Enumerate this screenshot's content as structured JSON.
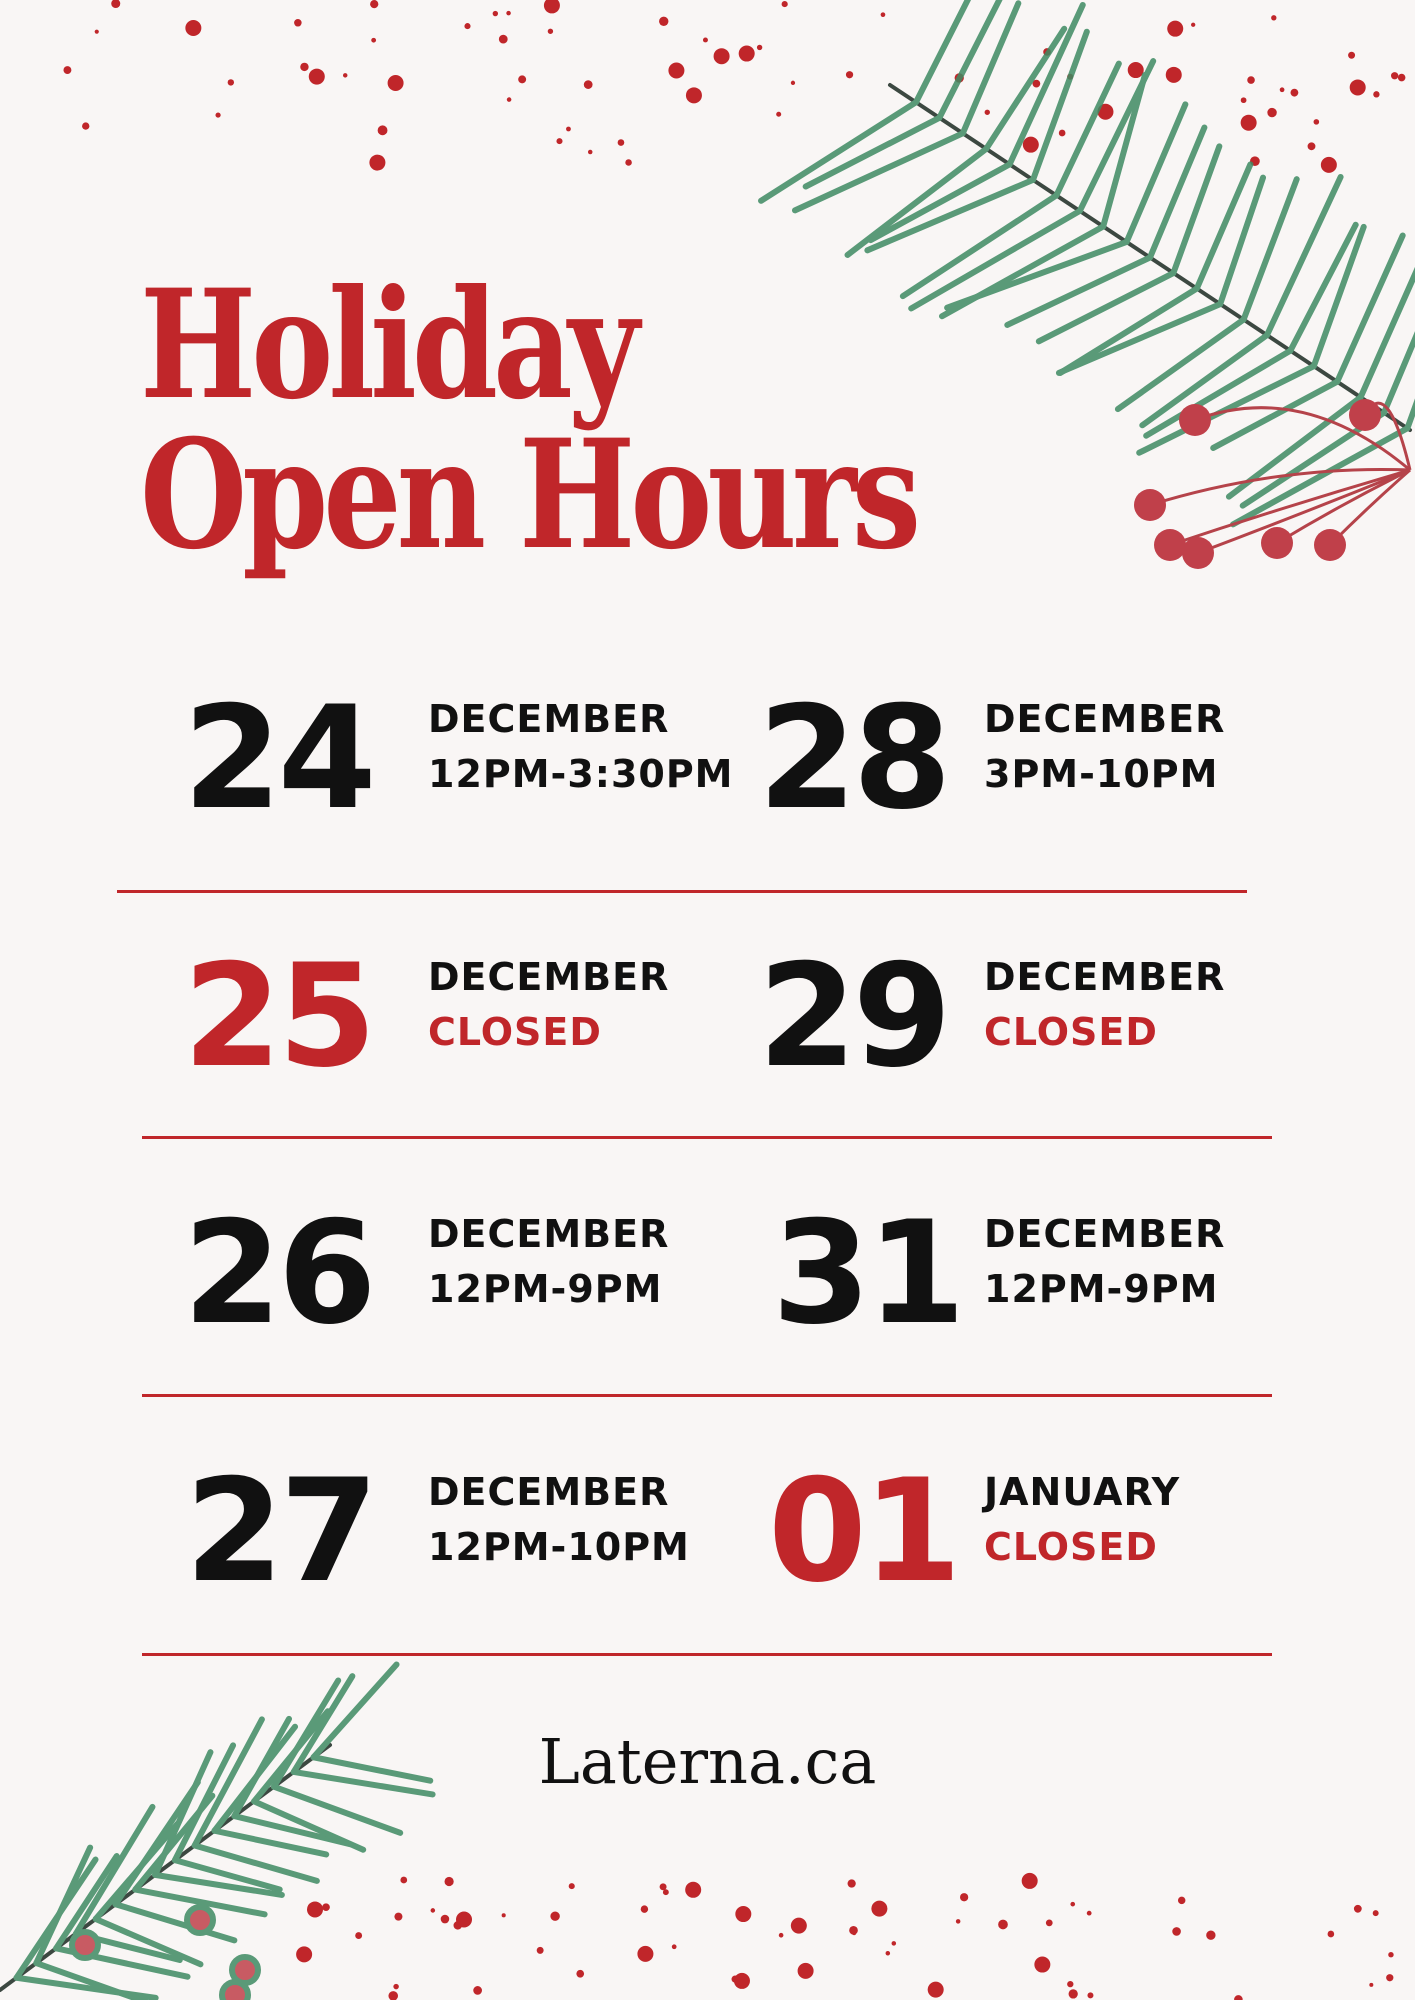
{
  "title": {
    "line1": "Holiday",
    "line2": "Open Hours"
  },
  "colors": {
    "accent": "#c0262a",
    "text": "#111111",
    "background": "#f9f6f5",
    "pine": "#3f8a63"
  },
  "schedule": [
    {
      "day": "24",
      "month": "DECEMBER",
      "hours": "12PM-3:30PM",
      "closed": false
    },
    {
      "day": "28",
      "month": "DECEMBER",
      "hours": "3PM-10PM",
      "closed": false
    },
    {
      "day": "25",
      "month": "DECEMBER",
      "hours": "CLOSED",
      "closed": true
    },
    {
      "day": "29",
      "month": "DECEMBER",
      "hours": "CLOSED",
      "closed": true
    },
    {
      "day": "26",
      "month": "DECEMBER",
      "hours": "12PM-9PM",
      "closed": false
    },
    {
      "day": "31",
      "month": "DECEMBER",
      "hours": "12PM-9PM",
      "closed": false
    },
    {
      "day": "27",
      "month": "DECEMBER",
      "hours": "12PM-10PM",
      "closed": false
    },
    {
      "day": "01",
      "month": "JANUARY",
      "hours": "CLOSED",
      "closed": true
    }
  ],
  "footer": {
    "website": "Laterna.ca"
  }
}
